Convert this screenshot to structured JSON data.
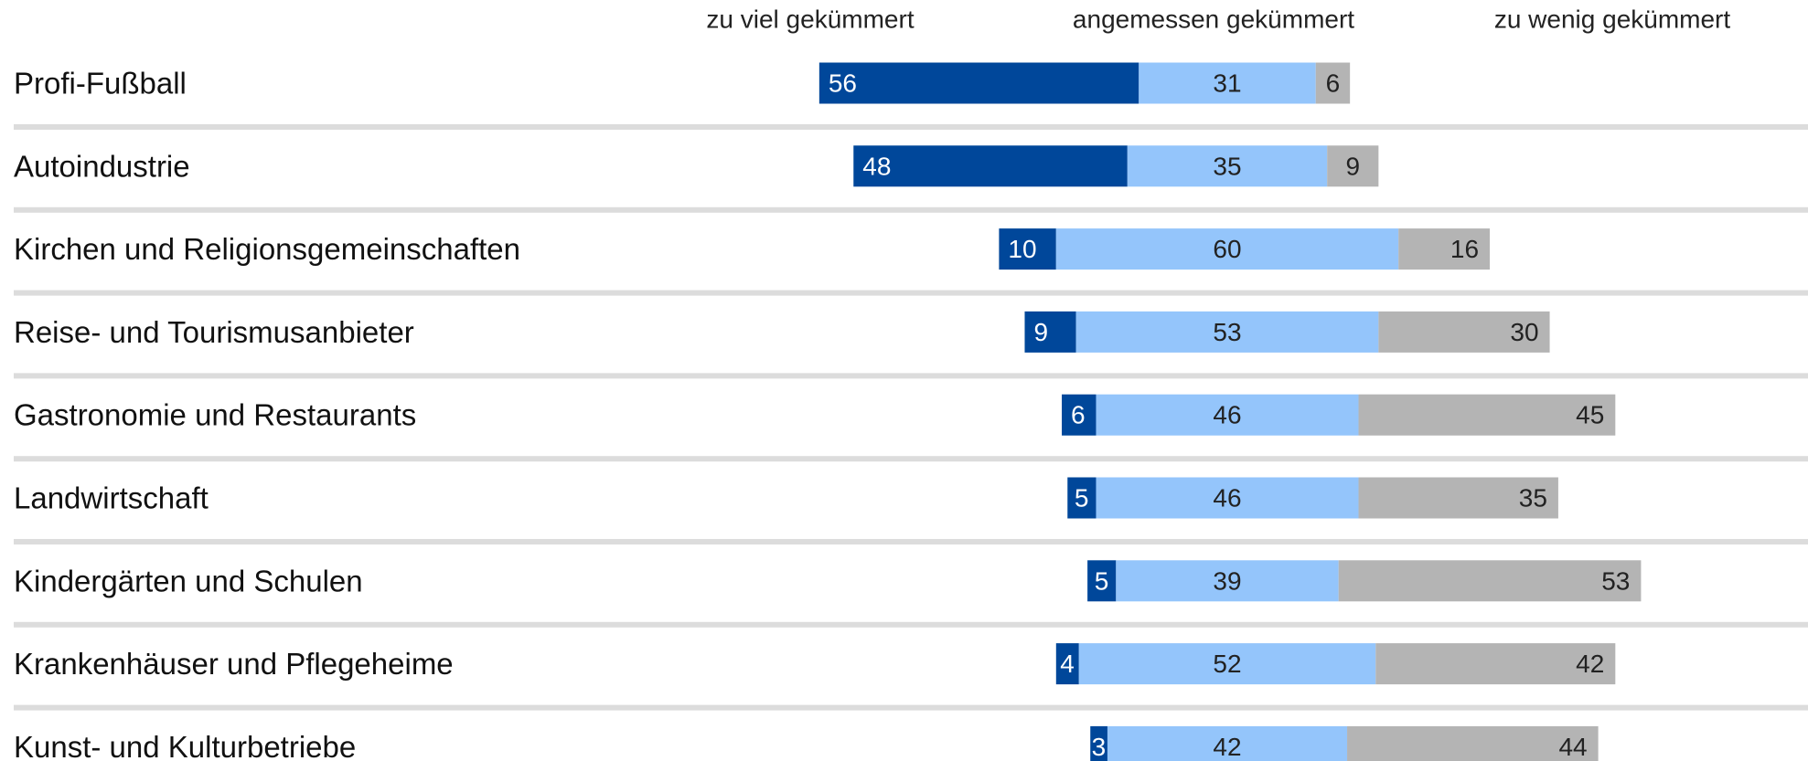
{
  "chart_data": {
    "type": "diverging-bar",
    "categories": [
      "Profi-Fußball",
      "Autoindustrie",
      "Kirchen und Religionsgemeinschaften",
      "Reise- und Tourismusanbieter",
      "Gastronomie und Restaurants",
      "Landwirtschaft",
      "Kindergärten und Schulen",
      "Krankenhäuser und Pflegeheime",
      "Kunst- und Kulturbetriebe"
    ],
    "series": [
      {
        "name": "zu viel gekümmert",
        "color": "#00479a",
        "values": [
          56,
          48,
          10,
          9,
          6,
          5,
          5,
          4,
          3
        ]
      },
      {
        "name": "angemessen gekümmert",
        "color": "#94c5fb",
        "values": [
          31,
          35,
          60,
          53,
          46,
          46,
          39,
          52,
          42
        ]
      },
      {
        "name": "zu wenig gekümmert",
        "color": "#b4b4b4",
        "values": [
          6,
          9,
          16,
          30,
          45,
          35,
          53,
          42,
          44
        ]
      }
    ]
  }
}
